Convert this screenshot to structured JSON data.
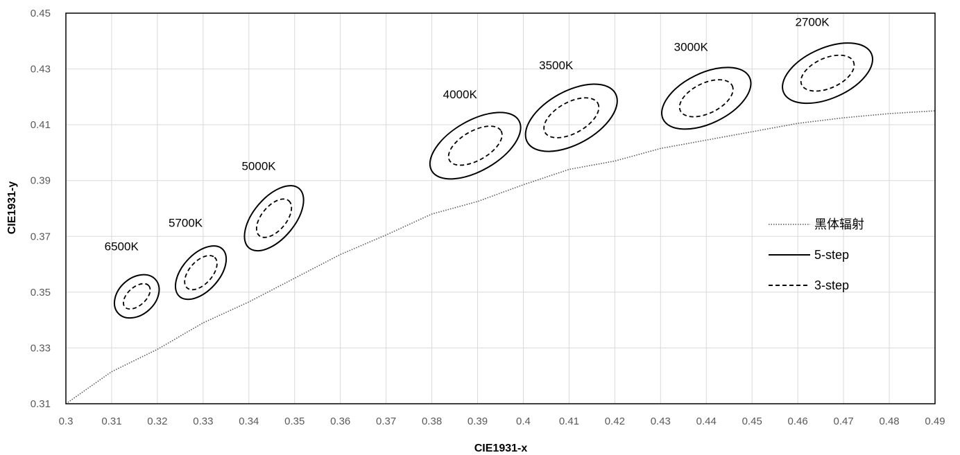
{
  "chart_data": {
    "type": "scatter",
    "xlabel": "CIE1931-x",
    "ylabel": "CIE1931-y",
    "xlim": [
      0.3,
      0.49
    ],
    "ylim": [
      0.31,
      0.45
    ],
    "x_ticks": [
      "0.3",
      "0.31",
      "0.32",
      "0.33",
      "0.34",
      "0.35",
      "0.36",
      "0.37",
      "0.38",
      "0.39",
      "0.4",
      "0.41",
      "0.42",
      "0.43",
      "0.44",
      "0.45",
      "0.46",
      "0.47",
      "0.48",
      "0.49"
    ],
    "y_ticks": [
      "0.31",
      "0.33",
      "0.35",
      "0.37",
      "0.39",
      "0.41",
      "0.43",
      "0.45"
    ],
    "grid": true,
    "legend_position": "right",
    "legend": [
      {
        "label": "黑体辐射",
        "style": "dotted"
      },
      {
        "label": "5-step",
        "style": "solid"
      },
      {
        "label": "3-step",
        "style": "dashed"
      }
    ],
    "series": [
      {
        "name": "黑体辐射",
        "style": "dotted",
        "x": [
          0.3,
          0.31,
          0.32,
          0.33,
          0.34,
          0.35,
          0.36,
          0.37,
          0.38,
          0.39,
          0.4,
          0.41,
          0.42,
          0.43,
          0.44,
          0.45,
          0.46,
          0.47,
          0.48,
          0.49
        ],
        "y": [
          0.31,
          0.3215,
          0.3295,
          0.339,
          0.3465,
          0.355,
          0.3635,
          0.3705,
          0.378,
          0.3825,
          0.3885,
          0.394,
          0.397,
          0.4015,
          0.4045,
          0.4075,
          0.4105,
          0.4125,
          0.414,
          0.415
        ]
      }
    ],
    "ellipses": [
      {
        "label": "6500K",
        "cx": 0.3155,
        "cy": 0.3485,
        "rx5": 0.0055,
        "ry5": 0.004,
        "angle": 42,
        "rx3": 0.0035,
        "ry3": 0.002
      },
      {
        "label": "5700K",
        "cx": 0.3295,
        "cy": 0.357,
        "rx5": 0.007,
        "ry5": 0.004,
        "angle": 48,
        "rx3": 0.0045,
        "ry3": 0.0025
      },
      {
        "label": "5000K",
        "cx": 0.3455,
        "cy": 0.3765,
        "rx5": 0.0085,
        "ry5": 0.0045,
        "angle": 50,
        "rx3": 0.005,
        "ry3": 0.0027
      },
      {
        "label": "4000K",
        "cx": 0.3895,
        "cy": 0.4025,
        "rx5": 0.011,
        "ry5": 0.0055,
        "angle": 30,
        "rx3": 0.0065,
        "ry3": 0.0032
      },
      {
        "label": "3500K",
        "cx": 0.4105,
        "cy": 0.4125,
        "rx5": 0.011,
        "ry5": 0.0058,
        "angle": 29,
        "rx3": 0.0066,
        "ry3": 0.0034
      },
      {
        "label": "3000K",
        "cx": 0.44,
        "cy": 0.4195,
        "rx5": 0.0105,
        "ry5": 0.0055,
        "angle": 26,
        "rx3": 0.0063,
        "ry3": 0.0033
      },
      {
        "label": "2700K",
        "cx": 0.4665,
        "cy": 0.4285,
        "rx5": 0.0105,
        "ry5": 0.0055,
        "angle": 24,
        "rx3": 0.0062,
        "ry3": 0.0033
      }
    ]
  }
}
